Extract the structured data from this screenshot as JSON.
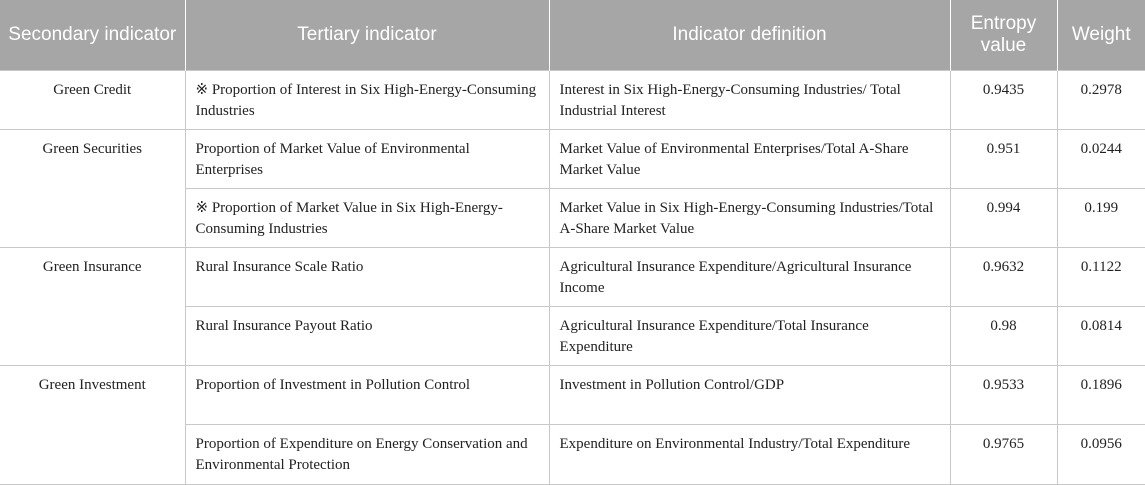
{
  "header": {
    "secondary": "Secondary indicator",
    "tertiary": "Tertiary indicator",
    "definition": "Indicator definition",
    "entropy": "Entropy value",
    "weight": "Weight"
  },
  "groups": {
    "credit": "Green Credit",
    "securities": "Green Securities",
    "insurance": "Green Insurance",
    "investment": "Green Investment"
  },
  "rows": [
    {
      "tertiary": "※ Proportion of Interest in Six High-Energy-Consuming Industries",
      "definition": "Interest in Six High-Energy-Consuming Industries/ Total Industrial Interest",
      "entropy": "0.9435",
      "weight": "0.2978"
    },
    {
      "tertiary": "Proportion of Market Value of Environmental Enterprises",
      "definition": "Market Value of Environmental Enterprises/Total A-Share Market Value",
      "entropy": "0.951",
      "weight": "0.0244"
    },
    {
      "tertiary": "※ Proportion of Market Value in Six High-Energy-Consuming Industries",
      "definition": "Market Value in Six High-Energy-Consuming Industries/Total A-Share Market Value",
      "entropy": "0.994",
      "weight": "0.199"
    },
    {
      "tertiary": "Rural Insurance Scale Ratio",
      "definition": "Agricultural Insurance Expenditure/Agricultural Insurance Income",
      "entropy": "0.9632",
      "weight": "0.1122"
    },
    {
      "tertiary": "Rural Insurance Payout Ratio",
      "definition": "Agricultural Insurance Expenditure/Total Insurance Expenditure",
      "entropy": "0.98",
      "weight": "0.0814"
    },
    {
      "tertiary": "Proportion of Investment in Pollution Control",
      "definition": "Investment in Pollution Control/GDP",
      "entropy": "0.9533",
      "weight": "0.1896"
    },
    {
      "tertiary": "Proportion of Expenditure on Energy Conservation and Environmental Protection",
      "definition": "Expenditure on Environmental Industry/Total Expenditure",
      "entropy": "0.9765",
      "weight": "0.0956"
    }
  ]
}
